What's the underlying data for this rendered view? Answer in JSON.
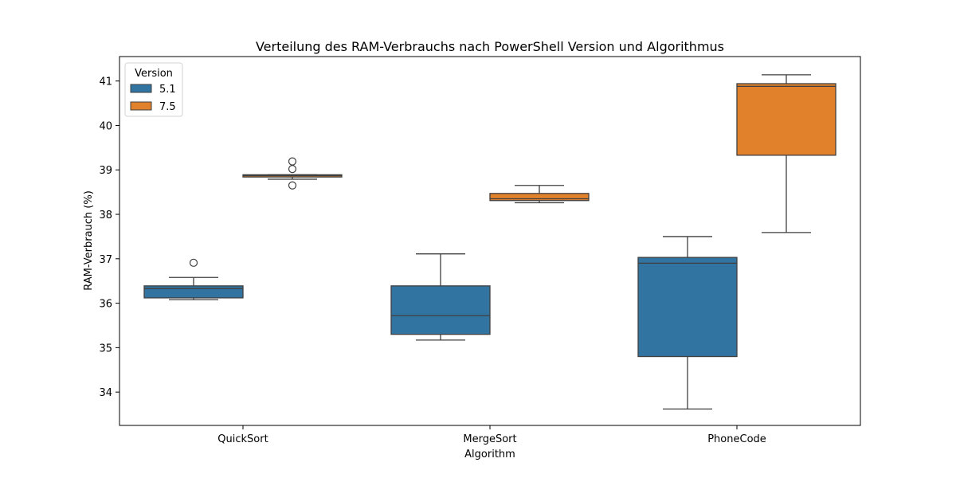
{
  "chart_data": {
    "type": "boxplot",
    "title": "Verteilung des RAM-Verbrauchs nach PowerShell Version und Algorithmus",
    "xlabel": "Algorithm",
    "ylabel": "RAM-Verbrauch (%)",
    "categories": [
      "QuickSort",
      "MergeSort",
      "PhoneCode"
    ],
    "ylim": [
      33.25,
      41.55
    ],
    "yticks": [
      34,
      35,
      36,
      37,
      38,
      39,
      40,
      41
    ],
    "grid": false,
    "legend": {
      "title": "Version",
      "placement": "top-left"
    },
    "series": [
      {
        "name": "5.1",
        "color": "#3274a1",
        "boxes": [
          {
            "whisker_low": 36.08,
            "q1": 36.12,
            "median": 36.33,
            "q3": 36.39,
            "whisker_high": 36.58,
            "outliers": [
              36.91
            ]
          },
          {
            "whisker_low": 35.17,
            "q1": 35.3,
            "median": 35.72,
            "q3": 36.39,
            "whisker_high": 37.11,
            "outliers": []
          },
          {
            "whisker_low": 33.62,
            "q1": 34.8,
            "median": 36.9,
            "q3": 37.03,
            "whisker_high": 37.5,
            "outliers": []
          }
        ]
      },
      {
        "name": "7.5",
        "color": "#e1812c",
        "boxes": [
          {
            "whisker_low": 38.79,
            "q1": 38.84,
            "median": 38.87,
            "q3": 38.89,
            "whisker_high": 38.89,
            "outliers": [
              38.65,
              39.02,
              39.19
            ]
          },
          {
            "whisker_low": 38.26,
            "q1": 38.31,
            "median": 38.35,
            "q3": 38.47,
            "whisker_high": 38.65,
            "outliers": []
          },
          {
            "whisker_low": 37.59,
            "q1": 39.33,
            "median": 40.88,
            "q3": 40.94,
            "whisker_high": 41.14,
            "outliers": []
          }
        ]
      }
    ]
  }
}
